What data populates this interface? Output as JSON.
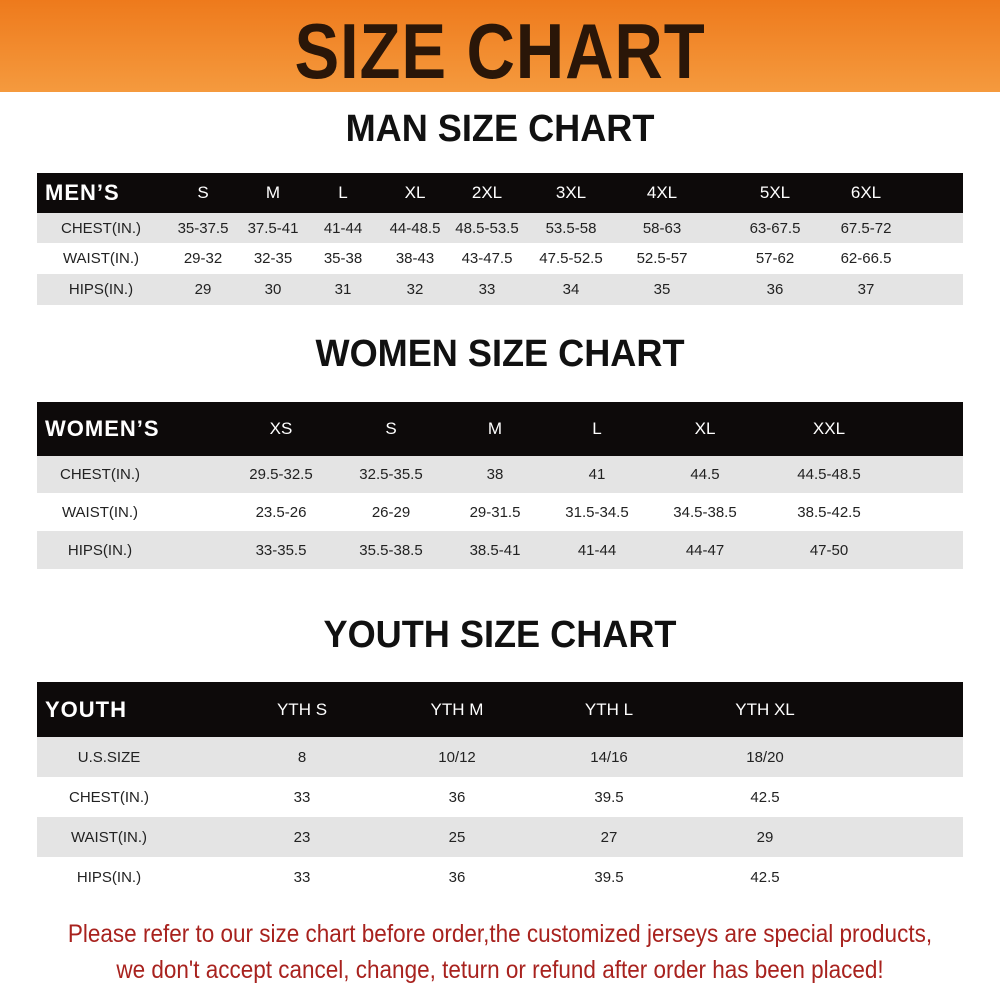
{
  "banner": {
    "title": "SIZE CHART",
    "color": "#ee7a1c"
  },
  "men": {
    "title": "MAN SIZE CHART",
    "header": "MEN’S",
    "sizes": [
      "S",
      "M",
      "L",
      "XL",
      "2XL",
      "3XL",
      "4XL",
      "5XL",
      "6XL"
    ],
    "rows": [
      {
        "label": "CHEST(IN.)",
        "values": [
          "35-37.5",
          "37.5-41",
          "41-44",
          "44-48.5",
          "48.5-53.5",
          "53.5-58",
          "58-63",
          "63-67.5",
          "67.5-72"
        ]
      },
      {
        "label": "WAIST(IN.)",
        "values": [
          "29-32",
          "32-35",
          "35-38",
          "38-43",
          "43-47.5",
          "47.5-52.5",
          "52.5-57",
          "57-62",
          "62-66.5"
        ]
      },
      {
        "label": "HIPS(IN.)",
        "values": [
          "29",
          "30",
          "31",
          "32",
          "33",
          "34",
          "35",
          "36",
          "37"
        ]
      }
    ]
  },
  "women": {
    "title": "WOMEN SIZE CHART",
    "header": "WOMEN’S",
    "sizes": [
      "XS",
      "S",
      "M",
      "L",
      "XL",
      "XXL"
    ],
    "rows": [
      {
        "label": "CHEST(IN.)",
        "values": [
          "29.5-32.5",
          "32.5-35.5",
          "38",
          "41",
          "44.5",
          "44.5-48.5"
        ]
      },
      {
        "label": "WAIST(IN.)",
        "values": [
          "23.5-26",
          "26-29",
          "29-31.5",
          "31.5-34.5",
          "34.5-38.5",
          "38.5-42.5"
        ]
      },
      {
        "label": "HIPS(IN.)",
        "values": [
          "33-35.5",
          "35.5-38.5",
          "38.5-41",
          "41-44",
          "44-47",
          "47-50"
        ]
      }
    ]
  },
  "youth": {
    "title": "YOUTH SIZE CHART",
    "header": "YOUTH",
    "sizes": [
      "YTH S",
      "YTH M",
      "YTH L",
      "YTH XL"
    ],
    "rows": [
      {
        "label": "U.S.SIZE",
        "values": [
          "8",
          "10/12",
          "14/16",
          "18/20"
        ]
      },
      {
        "label": "CHEST(IN.)",
        "values": [
          "33",
          "36",
          "39.5",
          "42.5"
        ]
      },
      {
        "label": "WAIST(IN.)",
        "values": [
          "23",
          "25",
          "27",
          "29"
        ]
      },
      {
        "label": "HIPS(IN.)",
        "values": [
          "33",
          "36",
          "39.5",
          "42.5"
        ]
      }
    ]
  },
  "footer": {
    "line1": "Please refer to our size chart before order,the customized jerseys are special products,",
    "line2": "we don't accept cancel, change, teturn or refund after order has been placed!",
    "color": "#a8221e"
  }
}
